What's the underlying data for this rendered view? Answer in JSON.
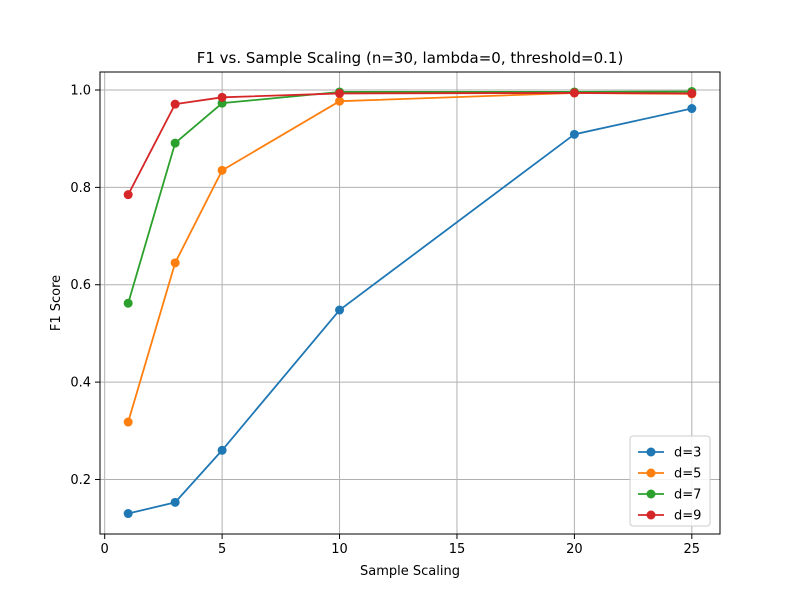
{
  "chart_data": {
    "type": "line",
    "title": "F1 vs. Sample Scaling (n=30, lambda=0, threshold=0.1)",
    "xlabel": "Sample Scaling",
    "ylabel": "F1 Score",
    "x": [
      1,
      3,
      5,
      10,
      20,
      25
    ],
    "xlim": [
      -0.2,
      26.2
    ],
    "ylim": [
      0.088,
      1.037
    ],
    "xticks": [
      0,
      5,
      10,
      15,
      20,
      25
    ],
    "yticks": [
      0.2,
      0.4,
      0.6,
      0.8,
      1.0
    ],
    "grid": true,
    "legend_position": "lower-right",
    "series": [
      {
        "name": "d=3",
        "color": "#1f77b4",
        "values": [
          0.13,
          0.153,
          0.26,
          0.548,
          0.909,
          0.962
        ]
      },
      {
        "name": "d=5",
        "color": "#ff7f0e",
        "values": [
          0.318,
          0.645,
          0.835,
          0.977,
          0.994,
          0.992
        ]
      },
      {
        "name": "d=7",
        "color": "#2ca02c",
        "values": [
          0.562,
          0.891,
          0.973,
          0.996,
          0.996,
          0.997
        ]
      },
      {
        "name": "d=9",
        "color": "#d62728",
        "values": [
          0.785,
          0.971,
          0.985,
          0.993,
          0.994,
          0.993
        ]
      }
    ]
  }
}
